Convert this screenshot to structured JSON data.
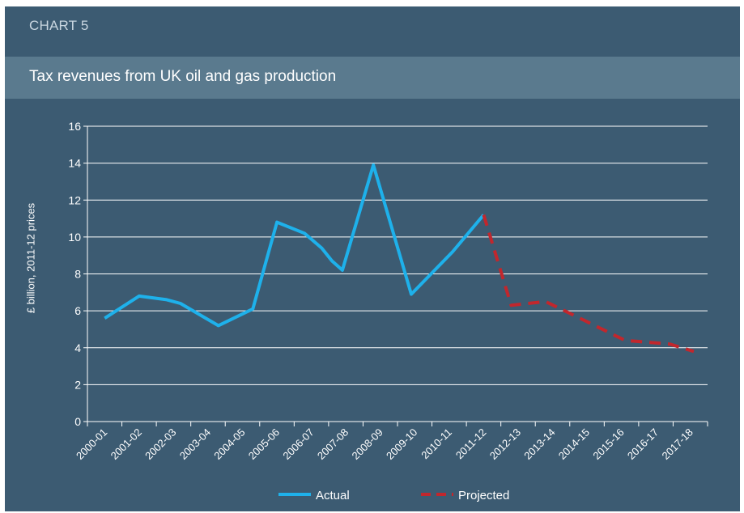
{
  "chart_label": "CHART 5",
  "colors": {
    "panel_background": "#3c5b72",
    "title_bar": "#5a7a8e",
    "actual_line": "#1eb1eb",
    "projected_line": "#c1272d",
    "grid": "#ffffff"
  },
  "chart_data": {
    "type": "line",
    "title": "Tax revenues from UK oil and gas production",
    "ylabel": "£ billion, 2011-12 prices",
    "xlabel": "",
    "ylim": [
      0,
      16
    ],
    "yticks": [
      0,
      2,
      4,
      6,
      8,
      10,
      12,
      14,
      16
    ],
    "categories": [
      "2000-01",
      "2001-02",
      "2002-03",
      "2003-04",
      "2004-05",
      "2005-06",
      "2006-07",
      "2007-08",
      "2008-09",
      "2009-10",
      "2010-11",
      "2011-12",
      "2012-13",
      "2013-14",
      "2014-15",
      "2015-16",
      "2016-17",
      "2017-18"
    ],
    "grid": true,
    "legend_position": "bottom",
    "series": [
      {
        "name": "Actual",
        "style": "solid",
        "points": [
          {
            "x": 0,
            "y": 5.6
          },
          {
            "x": 1,
            "y": 6.8
          },
          {
            "x": 1.8,
            "y": 6.6
          },
          {
            "x": 2.2,
            "y": 6.4
          },
          {
            "x": 3.3,
            "y": 5.2
          },
          {
            "x": 4.3,
            "y": 6.1
          },
          {
            "x": 5,
            "y": 10.8
          },
          {
            "x": 5.8,
            "y": 10.2
          },
          {
            "x": 6.3,
            "y": 9.4
          },
          {
            "x": 6.6,
            "y": 8.7
          },
          {
            "x": 6.9,
            "y": 8.2
          },
          {
            "x": 7.8,
            "y": 13.9
          },
          {
            "x": 8.9,
            "y": 6.9
          },
          {
            "x": 10.1,
            "y": 9.2
          },
          {
            "x": 11,
            "y": 11.2
          }
        ]
      },
      {
        "name": "Projected",
        "style": "dashed",
        "points": [
          {
            "x": 11,
            "y": 11.2
          },
          {
            "x": 11.8,
            "y": 6.3
          },
          {
            "x": 12.8,
            "y": 6.5
          },
          {
            "x": 13.9,
            "y": 5.5
          },
          {
            "x": 15.1,
            "y": 4.4
          },
          {
            "x": 16.4,
            "y": 4.2
          },
          {
            "x": 17.1,
            "y": 3.8
          }
        ]
      }
    ]
  }
}
